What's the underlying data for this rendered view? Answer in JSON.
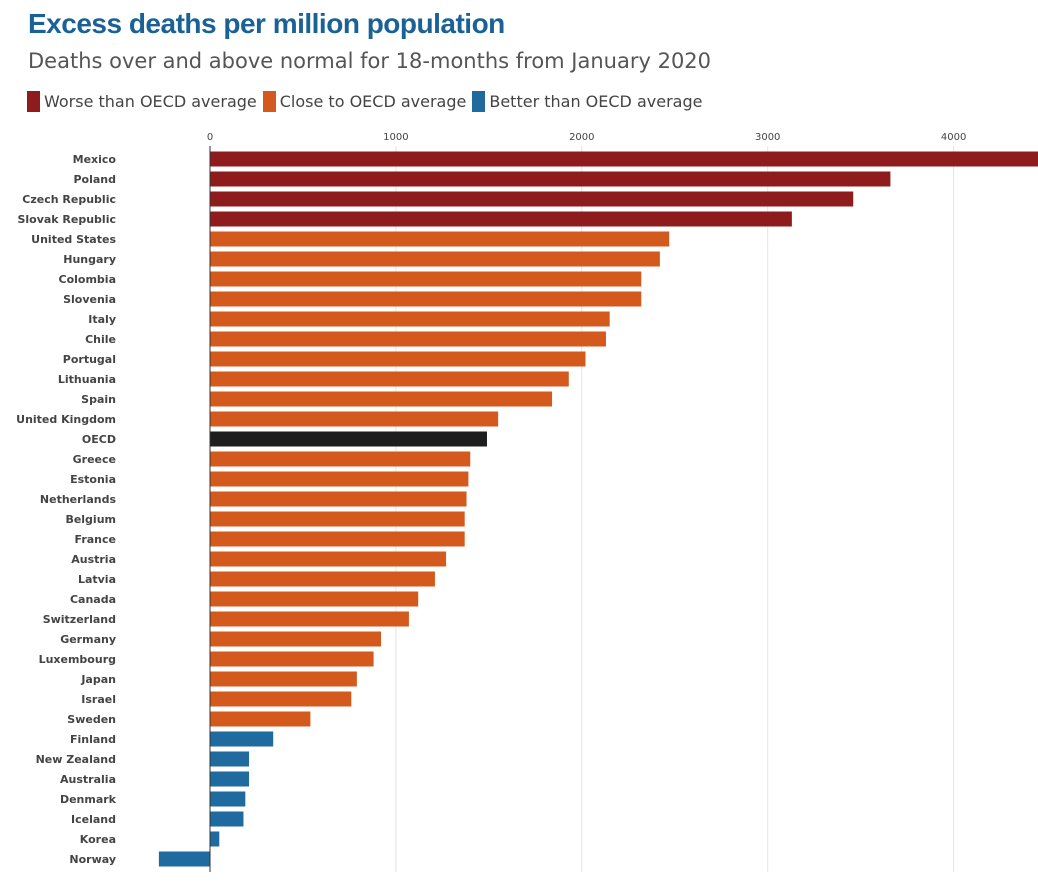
{
  "title": "Excess deaths per million population",
  "subtitle": "Deaths over and above normal for 18-months from January 2020",
  "legend": [
    {
      "label": "Worse than OECD average",
      "color": "#8e1c1c"
    },
    {
      "label": "Close to OECD average",
      "color": "#d35a1c"
    },
    {
      "label": "Better than OECD average",
      "color": "#1f6a9e"
    }
  ],
  "colors": {
    "worse": "#8e1c1c",
    "close": "#d35a1c",
    "better": "#1f6a9e",
    "oecd": "#1e1e1e",
    "grid": "#e4e4e4",
    "axis": "#333333",
    "label": "#444444"
  },
  "chart_data": {
    "type": "bar",
    "orientation": "horizontal",
    "title": "Excess deaths per million population",
    "subtitle": "Deaths over and above normal for 18-months from January 2020",
    "xlabel": "",
    "ylabel": "",
    "xlim": [
      -275,
      4450
    ],
    "x_ticks": [
      0,
      1000,
      2000,
      3000,
      4000
    ],
    "grid": true,
    "legend_position": "top-left",
    "categories": [
      "Mexico",
      "Poland",
      "Czech Republic",
      "Slovak Republic",
      "United States",
      "Hungary",
      "Colombia",
      "Slovenia",
      "Italy",
      "Chile",
      "Portugal",
      "Lithuania",
      "Spain",
      "United Kingdom",
      "OECD",
      "Greece",
      "Estonia",
      "Netherlands",
      "Belgium",
      "France",
      "Austria",
      "Latvia",
      "Canada",
      "Switzerland",
      "Germany",
      "Luxembourg",
      "Japan",
      "Israel",
      "Sweden",
      "Finland",
      "New Zealand",
      "Australia",
      "Denmark",
      "Iceland",
      "Korea",
      "Norway"
    ],
    "values": [
      4460,
      3660,
      3460,
      3130,
      2470,
      2420,
      2320,
      2320,
      2150,
      2130,
      2020,
      1930,
      1840,
      1550,
      1490,
      1400,
      1390,
      1380,
      1370,
      1370,
      1270,
      1210,
      1120,
      1070,
      920,
      880,
      790,
      760,
      540,
      340,
      210,
      210,
      190,
      180,
      50,
      -275
    ],
    "groups": [
      "worse",
      "worse",
      "worse",
      "worse",
      "close",
      "close",
      "close",
      "close",
      "close",
      "close",
      "close",
      "close",
      "close",
      "close",
      "oecd",
      "close",
      "close",
      "close",
      "close",
      "close",
      "close",
      "close",
      "close",
      "close",
      "close",
      "close",
      "close",
      "close",
      "close",
      "better",
      "better",
      "better",
      "better",
      "better",
      "better",
      "better"
    ]
  }
}
